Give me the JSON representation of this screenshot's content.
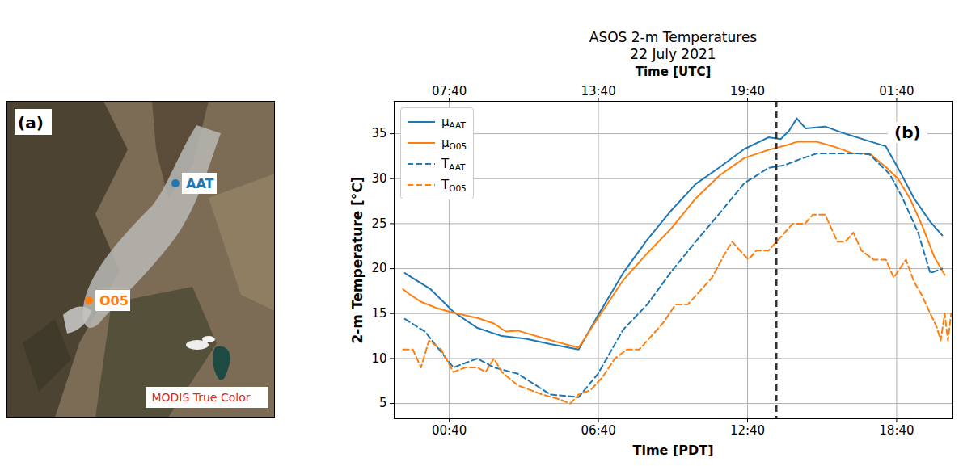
{
  "chart_data": {
    "type": "line",
    "title": "ASOS 2-m Temperatures",
    "subtitle": "22 July 2021",
    "panel_label": "(b)",
    "x_label": "Time [PDT]",
    "x2_label": "Time [UTC]",
    "y_label": "2-m Temperature [°C]",
    "xlim": [
      -1.55,
      20.93
    ],
    "ylim": [
      3.3,
      38.6
    ],
    "xticks": [
      {
        "value": 0.6667,
        "label": "00:40"
      },
      {
        "value": 6.6667,
        "label": "06:40"
      },
      {
        "value": 12.6667,
        "label": "12:40"
      },
      {
        "value": 18.6667,
        "label": "18:40"
      }
    ],
    "x2ticks": [
      {
        "value": 0.6667,
        "label": "07:40"
      },
      {
        "value": 6.6667,
        "label": "13:40"
      },
      {
        "value": 12.6667,
        "label": "19:40"
      },
      {
        "value": 18.6667,
        "label": "01:40"
      }
    ],
    "yticks": [
      5,
      10,
      15,
      20,
      25,
      30,
      35
    ],
    "vline_x": 13.83,
    "grid": true,
    "legend": "upper left",
    "series": [
      {
        "name": "μAAT",
        "color": "#1f77b4",
        "line_style": "solid",
        "x": [
          -1.12,
          -0.08,
          0.83,
          1.8,
          2.78,
          3.76,
          4.73,
          5.87,
          6.65,
          7.66,
          8.63,
          9.61,
          10.58,
          11.56,
          12.54,
          13.51,
          14.0,
          14.33,
          14.65,
          15.0,
          15.79,
          16.6,
          17.41,
          18.23,
          18.72,
          19.37,
          20.02,
          20.5
        ],
        "values": [
          19.5,
          17.7,
          15.2,
          13.4,
          12.5,
          12.2,
          11.6,
          11.0,
          14.8,
          19.5,
          23.2,
          26.5,
          29.4,
          31.3,
          33.3,
          34.6,
          34.4,
          35.3,
          36.7,
          35.6,
          35.8,
          35.0,
          34.3,
          33.6,
          31.2,
          27.8,
          25.2,
          23.7
        ]
      },
      {
        "name": "μO05",
        "color": "#ff7f0e",
        "line_style": "solid",
        "x": [
          -1.19,
          -0.96,
          -0.47,
          0.18,
          0.67,
          1.15,
          1.8,
          2.46,
          2.94,
          3.43,
          3.92,
          4.41,
          5.06,
          5.87,
          6.65,
          7.66,
          8.63,
          9.61,
          10.58,
          11.56,
          12.54,
          13.51,
          14.33,
          14.65,
          15.46,
          16.11,
          16.93,
          17.58,
          18.23,
          18.72,
          19.2,
          19.69,
          20.18,
          20.6
        ],
        "values": [
          17.7,
          17.2,
          16.3,
          15.6,
          15.2,
          14.9,
          14.5,
          13.9,
          13.0,
          13.1,
          12.7,
          12.3,
          11.8,
          11.2,
          14.5,
          18.7,
          21.7,
          24.5,
          27.8,
          30.4,
          32.3,
          33.2,
          33.8,
          34.1,
          34.1,
          33.6,
          32.8,
          32.8,
          31.3,
          30.0,
          27.8,
          24.8,
          21.3,
          19.3
        ]
      },
      {
        "name": "TAAT",
        "color": "#1f77b4",
        "line_style": "dashed",
        "x": [
          -1.12,
          -0.31,
          0.83,
          1.8,
          2.46,
          3.43,
          4.73,
          5.87,
          6.65,
          7.66,
          8.63,
          9.61,
          10.58,
          11.56,
          12.54,
          13.51,
          14.16,
          14.81,
          15.46,
          17.09,
          17.58,
          18.39,
          18.88,
          19.53,
          20.02,
          20.5
        ],
        "values": [
          14.4,
          13.0,
          9.0,
          10.0,
          9.0,
          8.3,
          6.0,
          5.7,
          8.3,
          13.2,
          16.0,
          19.7,
          23.0,
          26.2,
          29.5,
          31.2,
          31.5,
          32.2,
          32.8,
          32.8,
          32.7,
          30.5,
          28.0,
          24.0,
          19.5,
          20.0
        ]
      },
      {
        "name": "TO05",
        "color": "#ff7f0e",
        "line_style": "dashed",
        "x": [
          -1.19,
          -0.8,
          -0.47,
          -0.15,
          0.34,
          0.83,
          1.32,
          1.8,
          2.13,
          2.46,
          2.78,
          3.43,
          3.92,
          4.41,
          5.06,
          5.54,
          5.87,
          6.36,
          6.85,
          7.33,
          7.82,
          8.31,
          8.8,
          9.28,
          9.77,
          10.26,
          10.75,
          11.24,
          11.72,
          12.05,
          12.37,
          12.7,
          13.02,
          13.51,
          14.0,
          14.49,
          14.98,
          15.3,
          15.79,
          16.28,
          16.6,
          16.93,
          17.25,
          17.74,
          18.23,
          18.55,
          19.04,
          19.37,
          19.69,
          20.02,
          20.28,
          20.44,
          20.6,
          20.73,
          20.86
        ],
        "values": [
          11,
          11,
          9,
          12,
          11,
          8.5,
          9,
          9,
          8.5,
          10,
          8.5,
          7,
          6.5,
          6,
          5.5,
          5,
          6,
          6.5,
          8,
          10,
          11,
          11,
          12.5,
          14,
          16,
          16,
          17.5,
          19,
          21.5,
          23,
          22,
          21,
          22,
          22,
          23.5,
          25,
          25,
          26,
          26,
          23,
          23,
          24,
          22,
          21,
          21,
          19,
          21,
          18.5,
          17,
          15,
          13.5,
          12,
          15,
          12,
          15
        ]
      }
    ]
  },
  "image_panel": {
    "panel_label": "(a)",
    "caption": "MODIS True Color",
    "caption_color": "#d62728",
    "stations": [
      {
        "name": "AAT",
        "color": "#1f77b4"
      },
      {
        "name": "O05",
        "color": "#ff7f0e"
      }
    ]
  }
}
